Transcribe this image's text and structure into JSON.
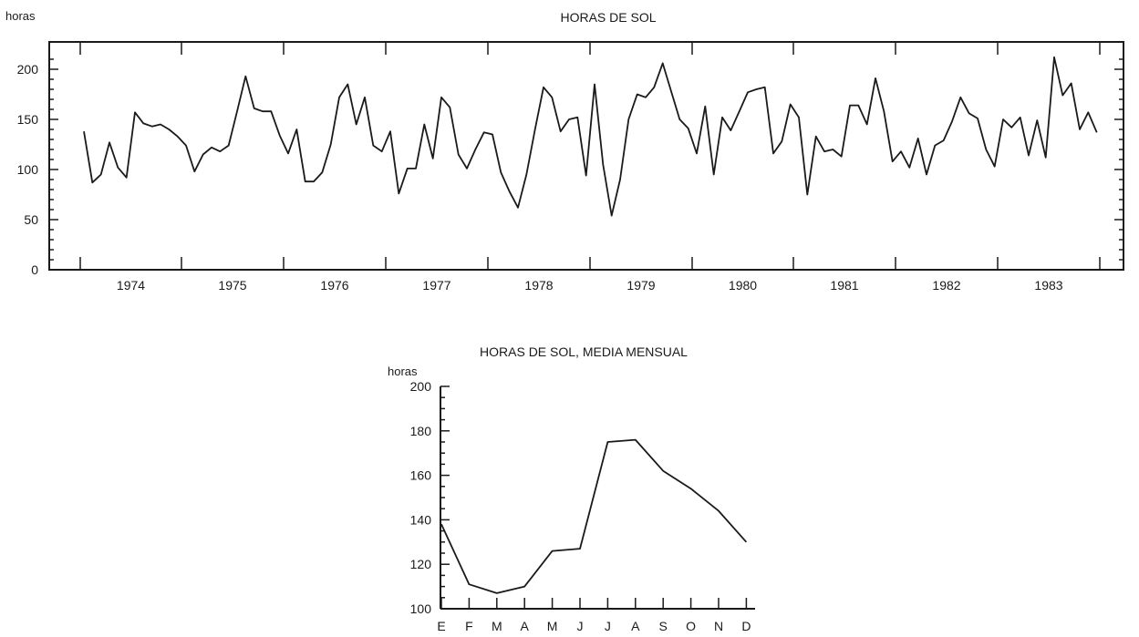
{
  "chart_data": [
    {
      "type": "line",
      "title": "HORAS DE SOL",
      "ylabel": "horas",
      "xlabel": "",
      "ylim": [
        0,
        220
      ],
      "y_ticks": [
        0,
        50,
        100,
        150,
        200
      ],
      "x_tick_labels": [
        "1974",
        "1975",
        "1976",
        "1977",
        "1978",
        "1979",
        "1980",
        "1981",
        "1982",
        "1983"
      ],
      "start": "1973-09",
      "frequency": "monthly",
      "values": [
        138,
        87,
        95,
        127,
        102,
        92,
        157,
        146,
        143,
        145,
        140,
        133,
        124,
        98,
        115,
        122,
        118,
        124,
        158,
        193,
        161,
        158,
        158,
        134,
        116,
        140,
        88,
        88,
        97,
        125,
        172,
        185,
        145,
        172,
        124,
        118,
        138,
        76,
        101,
        101,
        145,
        111,
        172,
        162,
        115,
        101,
        120,
        137,
        135,
        97,
        78,
        62,
        95,
        140,
        182,
        172,
        138,
        150,
        152,
        94,
        185,
        105,
        54,
        90,
        150,
        175,
        172,
        182,
        206,
        178,
        150,
        141,
        116,
        163,
        95,
        152,
        139,
        158,
        177,
        180,
        182,
        116,
        128,
        165,
        152,
        75,
        133,
        118,
        120,
        113,
        164,
        164,
        145,
        191,
        158,
        108,
        118,
        102,
        131,
        95,
        124,
        129,
        148,
        172,
        156,
        151,
        120,
        103,
        150,
        142,
        152,
        114,
        149,
        112,
        212,
        174,
        186,
        140,
        157,
        137
      ]
    },
    {
      "type": "line",
      "title": "HORAS DE SOL, MEDIA MENSUAL",
      "ylabel": "horas",
      "xlabel": "",
      "ylim": [
        100,
        200
      ],
      "y_ticks": [
        100,
        120,
        140,
        160,
        180,
        200
      ],
      "categories": [
        "E",
        "F",
        "M",
        "A",
        "M",
        "J",
        "J",
        "A",
        "S",
        "O",
        "N",
        "D"
      ],
      "values": [
        138,
        111,
        107,
        110,
        126,
        127,
        175,
        176,
        162,
        154,
        144,
        130
      ]
    }
  ]
}
